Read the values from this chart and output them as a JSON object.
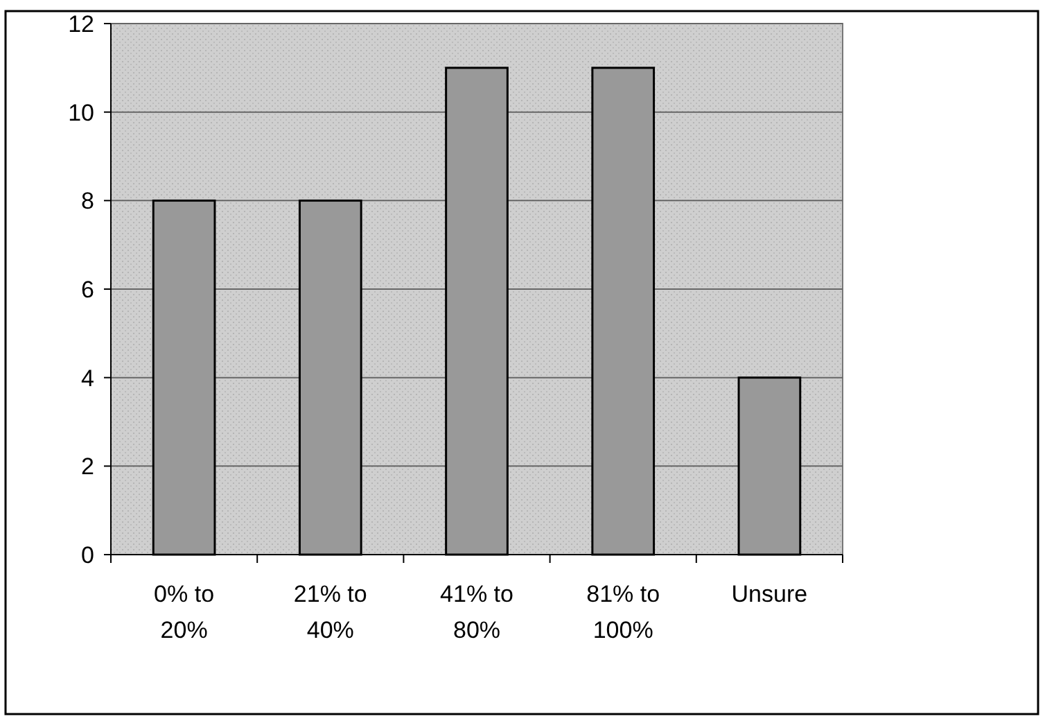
{
  "chart_data": {
    "type": "bar",
    "categories": [
      "0% to 20%",
      "21% to 40%",
      "41% to 80%",
      "81% to 100%",
      "Unsure"
    ],
    "values": [
      8,
      8,
      11,
      11,
      4
    ],
    "color": "#999999",
    "ylim": [
      0,
      12
    ],
    "yticks": [
      0,
      2,
      4,
      6,
      8,
      10,
      12
    ],
    "grid": "y"
  }
}
